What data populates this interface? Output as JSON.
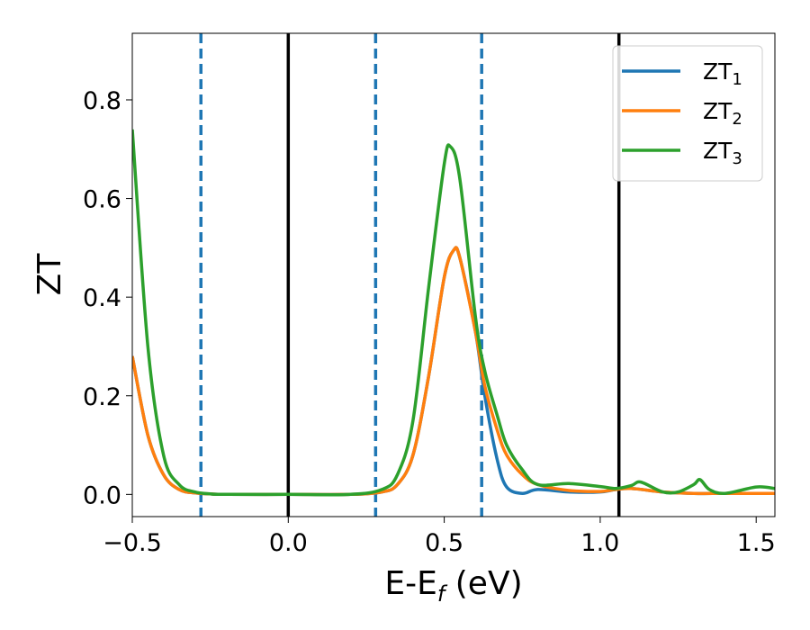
{
  "chart_data": {
    "type": "line",
    "xlabel": "E-E_f (eV)",
    "xlabel_main": "E-E",
    "xlabel_sub": "f",
    "xlabel_unit": " (eV)",
    "ylabel": "ZT",
    "xlim": [
      -0.5,
      1.56
    ],
    "ylim": [
      -0.045,
      0.935
    ],
    "xticks": [
      -0.5,
      0.0,
      0.5,
      1.0,
      1.5
    ],
    "xtick_labels": [
      "−0.5",
      "0.0",
      "0.5",
      "1.0",
      "1.5"
    ],
    "yticks": [
      0.0,
      0.2,
      0.4,
      0.6,
      0.8
    ],
    "ytick_labels": [
      "0.0",
      "0.2",
      "0.4",
      "0.6",
      "0.8"
    ],
    "grid": false,
    "legend_position": "top-right",
    "vlines": [
      {
        "x": -0.28,
        "style": "dashed",
        "color": "#1f77b4"
      },
      {
        "x": 0.0,
        "style": "solid",
        "color": "#000000"
      },
      {
        "x": 0.28,
        "style": "dashed",
        "color": "#1f77b4"
      },
      {
        "x": 0.62,
        "style": "dashed",
        "color": "#1f77b4"
      },
      {
        "x": 1.06,
        "style": "solid",
        "color": "#000000"
      }
    ],
    "series": [
      {
        "name": "ZT1",
        "label_main": "ZT",
        "label_sub": "1",
        "color": "#1f77b4",
        "x": [
          -0.5,
          -0.45,
          -0.4,
          -0.35,
          -0.3,
          -0.25,
          -0.2,
          0.0,
          0.2,
          0.3,
          0.35,
          0.4,
          0.45,
          0.5,
          0.53,
          0.55,
          0.6,
          0.63,
          0.67,
          0.7,
          0.75,
          0.8,
          0.9,
          1.0,
          1.05,
          1.1,
          1.2,
          1.3,
          1.4,
          1.56
        ],
        "y": [
          0.28,
          0.12,
          0.04,
          0.01,
          0.003,
          0.001,
          0.0,
          0.0,
          0.0,
          0.005,
          0.02,
          0.08,
          0.24,
          0.44,
          0.495,
          0.48,
          0.33,
          0.2,
          0.07,
          0.015,
          0.002,
          0.01,
          0.005,
          0.005,
          0.01,
          0.012,
          0.005,
          0.002,
          0.002,
          0.002
        ]
      },
      {
        "name": "ZT2",
        "label_main": "ZT",
        "label_sub": "2",
        "color": "#ff7f0e",
        "x": [
          -0.5,
          -0.45,
          -0.4,
          -0.35,
          -0.3,
          -0.25,
          -0.2,
          0.0,
          0.2,
          0.3,
          0.35,
          0.4,
          0.45,
          0.5,
          0.53,
          0.55,
          0.6,
          0.63,
          0.67,
          0.7,
          0.75,
          0.8,
          0.9,
          1.0,
          1.05,
          1.1,
          1.2,
          1.3,
          1.4,
          1.56
        ],
        "y": [
          0.28,
          0.12,
          0.04,
          0.01,
          0.003,
          0.001,
          0.0,
          0.0,
          0.0,
          0.005,
          0.02,
          0.08,
          0.24,
          0.44,
          0.495,
          0.48,
          0.33,
          0.22,
          0.13,
          0.08,
          0.04,
          0.02,
          0.008,
          0.006,
          0.01,
          0.012,
          0.005,
          0.002,
          0.002,
          0.002
        ]
      },
      {
        "name": "ZT3",
        "label_main": "ZT",
        "label_sub": "3",
        "color": "#2ca02c",
        "x": [
          -0.5,
          -0.45,
          -0.4,
          -0.35,
          -0.3,
          -0.25,
          -0.2,
          0.0,
          0.2,
          0.3,
          0.35,
          0.4,
          0.45,
          0.5,
          0.52,
          0.55,
          0.6,
          0.63,
          0.67,
          0.7,
          0.75,
          0.8,
          0.9,
          1.0,
          1.05,
          1.1,
          1.13,
          1.2,
          1.25,
          1.3,
          1.32,
          1.35,
          1.4,
          1.5,
          1.56
        ],
        "y": [
          0.74,
          0.3,
          0.08,
          0.02,
          0.005,
          0.001,
          0.0,
          0.0,
          0.0,
          0.01,
          0.04,
          0.15,
          0.42,
          0.67,
          0.705,
          0.64,
          0.36,
          0.25,
          0.16,
          0.1,
          0.05,
          0.02,
          0.022,
          0.016,
          0.012,
          0.018,
          0.025,
          0.005,
          0.005,
          0.02,
          0.03,
          0.01,
          0.002,
          0.015,
          0.012
        ]
      }
    ]
  }
}
